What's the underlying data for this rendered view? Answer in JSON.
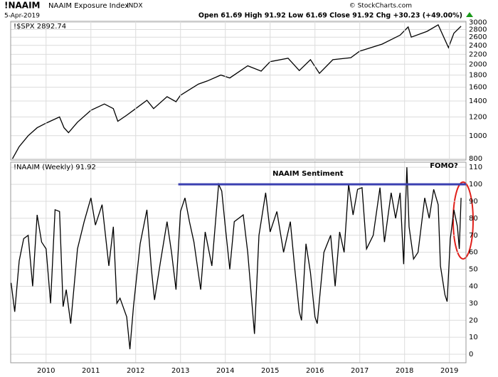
{
  "header": {
    "symbol": "!NAAIM",
    "name": "NAAIM Exposure Index",
    "exchange": "INDX",
    "date": "5-Apr-2019",
    "quote": "Open 61.69 High 91.92 Low 61.69 Close 91.92 Chg +30.23 (+49.00%)",
    "source": "© StockCharts.com"
  },
  "chart_data": [
    {
      "type": "line",
      "log_scale": true,
      "grid": true,
      "xlim": [
        2009.21,
        2019.37
      ],
      "ylim": [
        790,
        3030
      ],
      "yticks": [
        800,
        1000,
        1200,
        1400,
        1600,
        1800,
        2000,
        2200,
        2400,
        2600,
        2800,
        3000
      ],
      "x": [
        2009.25,
        2009.4,
        2009.6,
        2009.8,
        2010.0,
        2010.3,
        2010.4,
        2010.5,
        2010.7,
        2011.0,
        2011.3,
        2011.5,
        2011.6,
        2011.8,
        2012.0,
        2012.25,
        2012.4,
        2012.7,
        2012.9,
        2013.0,
        2013.4,
        2013.6,
        2013.9,
        2014.1,
        2014.5,
        2014.8,
        2015.0,
        2015.4,
        2015.65,
        2015.9,
        2016.1,
        2016.4,
        2016.8,
        2017.0,
        2017.5,
        2017.9,
        2018.08,
        2018.15,
        2018.5,
        2018.75,
        2018.98,
        2019.1,
        2019.26
      ],
      "series": [
        {
          "name": "!$SPX 2892.74",
          "color": "#000000",
          "values": [
            800,
            900,
            1000,
            1080,
            1130,
            1200,
            1080,
            1030,
            1140,
            1280,
            1360,
            1300,
            1150,
            1220,
            1300,
            1410,
            1300,
            1460,
            1390,
            1480,
            1650,
            1700,
            1800,
            1750,
            1970,
            1870,
            2050,
            2120,
            1880,
            2090,
            1830,
            2090,
            2130,
            2270,
            2430,
            2650,
            2870,
            2600,
            2750,
            2930,
            2350,
            2700,
            2890
          ]
        }
      ]
    },
    {
      "type": "line",
      "log_scale": false,
      "grid": true,
      "xlim": [
        2009.21,
        2019.37
      ],
      "ylim": [
        -5,
        113
      ],
      "xticks": [
        2010,
        2011,
        2012,
        2013,
        2014,
        2015,
        2016,
        2017,
        2018,
        2019
      ],
      "yticks": [
        0,
        10,
        20,
        30,
        40,
        50,
        60,
        70,
        80,
        90,
        100,
        110
      ],
      "x": [
        2009.22,
        2009.3,
        2009.4,
        2009.5,
        2009.6,
        2009.7,
        2009.8,
        2009.9,
        2010.0,
        2010.1,
        2010.2,
        2010.3,
        2010.38,
        2010.45,
        2010.55,
        2010.7,
        2010.85,
        2011.0,
        2011.1,
        2011.25,
        2011.4,
        2011.5,
        2011.58,
        2011.65,
        2011.8,
        2011.87,
        2011.95,
        2012.1,
        2012.25,
        2012.35,
        2012.42,
        2012.55,
        2012.7,
        2012.8,
        2012.9,
        2013.0,
        2013.1,
        2013.2,
        2013.3,
        2013.45,
        2013.55,
        2013.7,
        2013.85,
        2013.92,
        2014.0,
        2014.1,
        2014.2,
        2014.4,
        2014.5,
        2014.65,
        2014.75,
        2014.9,
        2015.0,
        2015.15,
        2015.3,
        2015.45,
        2015.55,
        2015.65,
        2015.7,
        2015.8,
        2015.9,
        2016.0,
        2016.05,
        2016.2,
        2016.35,
        2016.45,
        2016.55,
        2016.65,
        2016.75,
        2016.85,
        2016.95,
        2017.05,
        2017.15,
        2017.3,
        2017.45,
        2017.55,
        2017.7,
        2017.8,
        2017.9,
        2017.98,
        2018.05,
        2018.1,
        2018.2,
        2018.3,
        2018.45,
        2018.55,
        2018.65,
        2018.75,
        2018.8,
        2018.9,
        2018.95,
        2019.02,
        2019.1,
        2019.18,
        2019.22,
        2019.26
      ],
      "series": [
        {
          "name": "!NAAIM (Weekly) 91.92",
          "color": "#000000",
          "values": [
            42,
            25,
            55,
            68,
            70,
            40,
            82,
            66,
            62,
            30,
            85,
            84,
            28,
            38,
            18,
            62,
            78,
            92,
            76,
            88,
            52,
            75,
            30,
            33,
            22,
            3,
            28,
            65,
            85,
            50,
            32,
            54,
            78,
            60,
            38,
            84,
            92,
            78,
            66,
            38,
            72,
            52,
            100,
            96,
            75,
            50,
            78,
            82,
            60,
            12,
            70,
            95,
            72,
            84,
            60,
            78,
            50,
            25,
            20,
            65,
            48,
            22,
            18,
            60,
            70,
            40,
            72,
            60,
            100,
            82,
            97,
            98,
            62,
            70,
            98,
            66,
            95,
            80,
            95,
            53,
            110,
            75,
            56,
            60,
            92,
            80,
            97,
            88,
            52,
            35,
            31,
            68,
            85,
            75,
            62,
            92
          ]
        }
      ],
      "reference_line": {
        "label": "NAAIM Sentiment",
        "value": 100,
        "x": [
          2012.95,
          2019.37
        ],
        "color": "#3a3fb0"
      },
      "annotation": {
        "text": "FOMO?",
        "color": "#e0201b"
      }
    }
  ]
}
